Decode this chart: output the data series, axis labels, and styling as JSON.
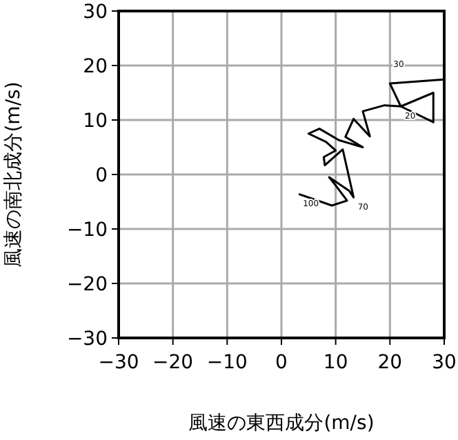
{
  "chart_data": {
    "type": "line",
    "xlabel": "風速の東西成分(m/s)",
    "ylabel": "風速の南北成分(m/s)",
    "series": [
      {
        "color": "#000000",
        "x": [
          3.2,
          9.3,
          12.1,
          10,
          8.8,
          12.5,
          13.3,
          11.3,
          8,
          7.8,
          10,
          8.2,
          5,
          7,
          10.6,
          15,
          11.8,
          13.3,
          16.3,
          15,
          19,
          22,
          28,
          28,
          22,
          20,
          29.5,
          30
        ],
        "values": [
          -3.6,
          -5.7,
          -4.8,
          -2,
          -0.5,
          -3,
          -4.2,
          4.6,
          1.7,
          3.2,
          4.4,
          6,
          7.5,
          8.4,
          6.3,
          5,
          6.9,
          10.2,
          7,
          11.6,
          12.7,
          12.5,
          15,
          9.6,
          12.5,
          16.7,
          17.4,
          17.4
        ]
      }
    ],
    "xlim": [
      -30,
      30
    ],
    "ylim": [
      -30,
      30
    ],
    "xticks": [
      -30,
      -20,
      -10,
      0,
      10,
      20,
      30
    ],
    "yticks": [
      -30,
      -20,
      -10,
      0,
      10,
      20,
      30
    ],
    "grid": true,
    "annotations": [
      {
        "text": "100",
        "x": 3.2,
        "y": -3.6
      },
      {
        "text": "70",
        "x": 13.3,
        "y": -4.2
      },
      {
        "text": "20",
        "x": 22,
        "y": 12.5
      },
      "30"
    ]
  }
}
